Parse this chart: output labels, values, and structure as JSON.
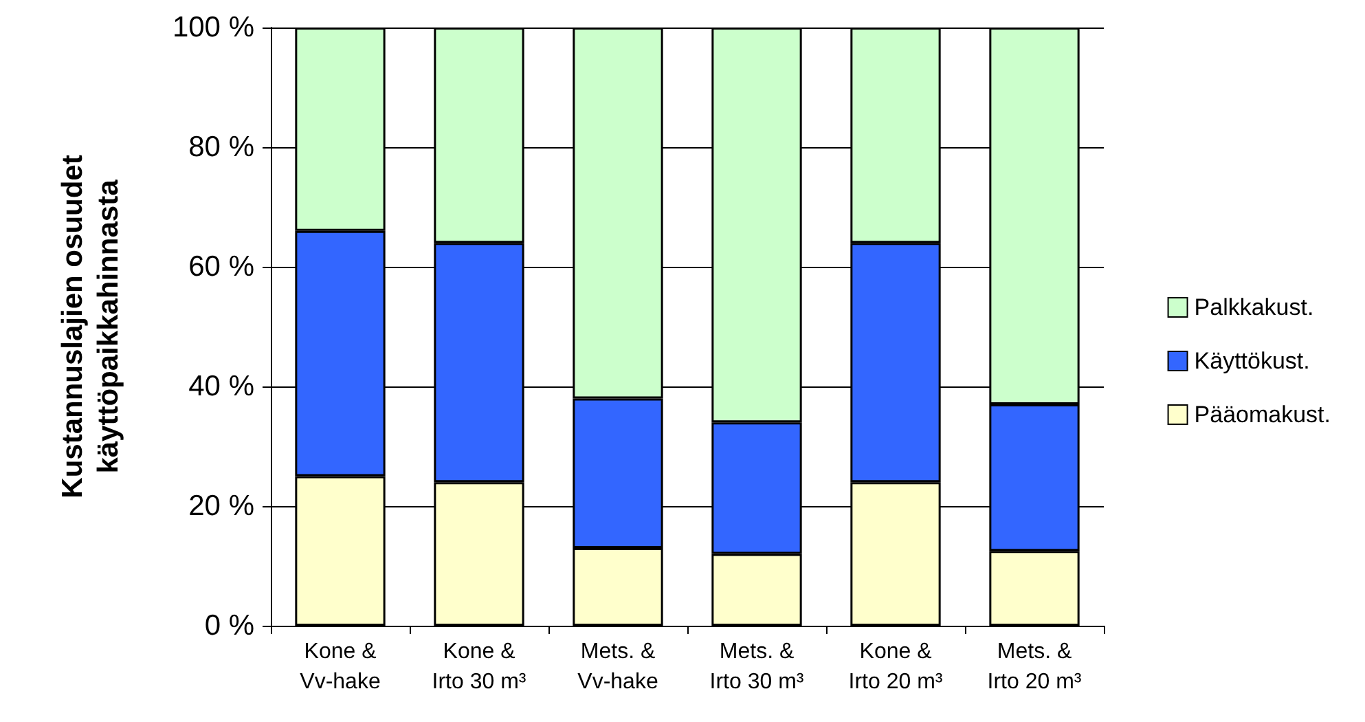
{
  "chart_data": {
    "type": "bar",
    "stacked": true,
    "ylabel": "Kustannuslajien osuudet\nkäyttöpaikkahinnasta",
    "categories": [
      "Kone &\nVv-hake",
      "Kone &\nIrto 30 m³",
      "Mets. &\nVv-hake",
      "Mets. &\nIrto 30 m³",
      "Kone &\nIrto 20 m³",
      "Mets. &\nIrto 20 m³"
    ],
    "series": [
      {
        "name": "Pääomakust.",
        "color": "#ffffcc",
        "values": [
          25,
          24,
          13,
          12,
          24,
          12.5
        ]
      },
      {
        "name": "Käyttökust.",
        "color": "#3366ff",
        "values": [
          41,
          40,
          25,
          22,
          40,
          24.5
        ]
      },
      {
        "name": "Palkkakust.",
        "color": "#ccffcc",
        "values": [
          34,
          36,
          62,
          66,
          36,
          63
        ]
      }
    ],
    "ylim": [
      0,
      100
    ],
    "yticks": [
      {
        "value": 0,
        "label": "0 %"
      },
      {
        "value": 20,
        "label": "20 %"
      },
      {
        "value": 40,
        "label": "40 %"
      },
      {
        "value": 60,
        "label": "60 %"
      },
      {
        "value": 80,
        "label": "80 %"
      },
      {
        "value": 100,
        "label": "100 %"
      }
    ],
    "grid": "y",
    "legend": "right"
  }
}
